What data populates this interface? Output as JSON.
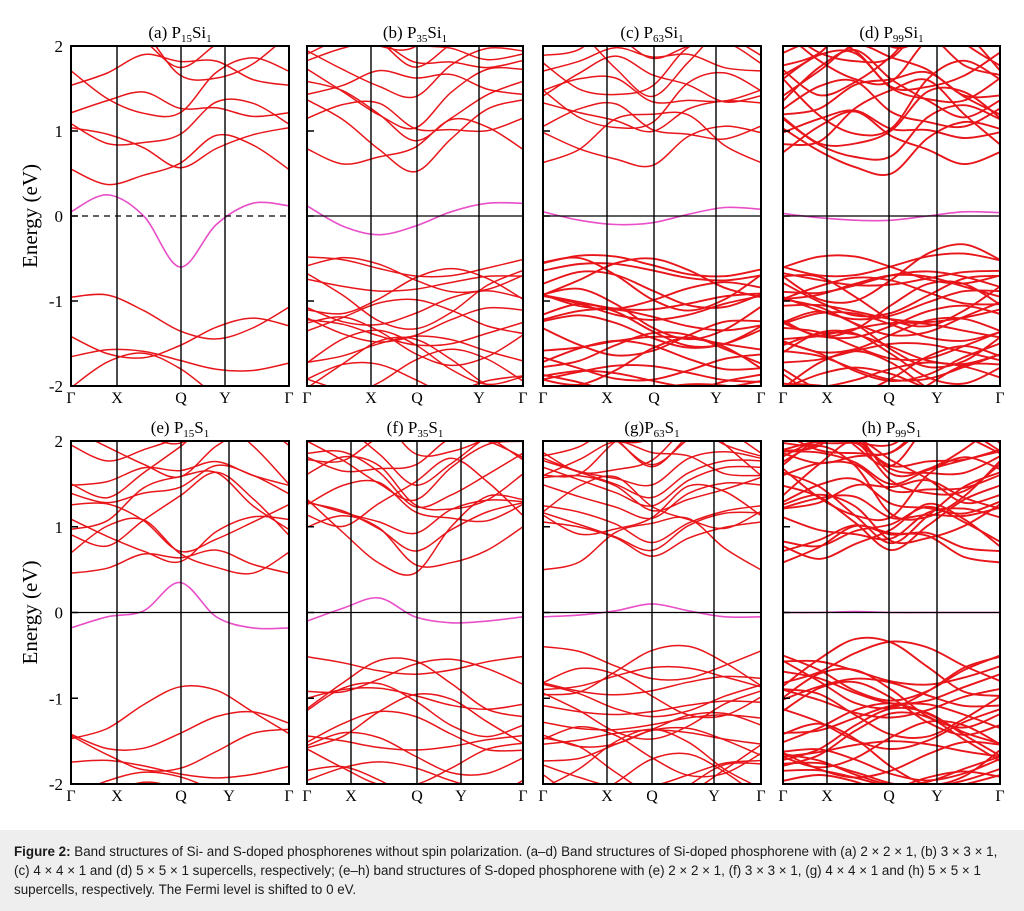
{
  "caption": {
    "label": "Figure 2:",
    "text": "Band structures of Si- and S-doped phosphorenes without spin polarization. (a–d) Band structures of Si-doped phosphorene with (a) 2 × 2 × 1, (b) 3 × 3 × 1, (c) 4 × 4 × 1 and (d) 5 × 5 × 1 supercells, respectively; (e–h) band structures of S-doped phosphorene with (e) 2 × 2 × 1, (f) 3 × 3 × 1, (g) 4 × 4 × 1 and (h) 5 × 5 × 1 supercells, respectively. The Fermi level is shifted to 0 eV."
  },
  "colors": {
    "band": "#e8161a",
    "impurity_band": "#e84fc8",
    "axis": "#000000"
  },
  "chart_data": [
    {
      "type": "line",
      "panel": "a",
      "title": "(a) P15Si1",
      "title_main": "(a) P",
      "sub1": "15",
      "mid": "Si",
      "sub2": "1",
      "ylabel": "Energy (eV)",
      "ylim": [
        -2,
        2
      ],
      "yticks": [
        "2",
        "1",
        "0",
        "-1",
        "-2"
      ],
      "xticks": [
        "Γ",
        "X",
        "Q",
        "Y",
        "Γ"
      ],
      "fermi_line": "dashed",
      "impurity_band": [
        0.05,
        0.25,
        0.0,
        -0.6,
        -0.1,
        0.15,
        0.12
      ],
      "n_conduction": 8,
      "n_valence": 6
    },
    {
      "type": "line",
      "panel": "b",
      "title": "(b) P35Si1",
      "title_main": "(b) P",
      "sub1": "35",
      "mid": "Si",
      "sub2": "1",
      "ylim": [
        -2,
        2
      ],
      "xticks": [
        "Γ",
        "X",
        "Q",
        "Y",
        "Γ"
      ],
      "fermi_line": "solid",
      "impurity_band": [
        0.12,
        -0.12,
        -0.22,
        -0.12,
        0.05,
        0.15,
        0.15
      ],
      "n_conduction": 12,
      "n_valence": 16
    },
    {
      "type": "line",
      "panel": "c",
      "title": "(c) P63Si1",
      "title_main": "(c) P",
      "sub1": "63",
      "mid": "Si",
      "sub2": "1",
      "ylim": [
        -2,
        2
      ],
      "xticks": [
        "Γ",
        "X",
        "Q",
        "Y",
        "Γ"
      ],
      "fermi_line": "solid",
      "impurity_band": [
        0.05,
        -0.05,
        -0.1,
        -0.08,
        0.02,
        0.1,
        0.08
      ],
      "n_conduction": 14,
      "n_valence": 22
    },
    {
      "type": "line",
      "panel": "d",
      "title": "(d) P99Si1",
      "title_main": "(d) P",
      "sub1": "99",
      "mid": "Si",
      "sub2": "1",
      "ylim": [
        -2,
        2
      ],
      "xticks": [
        "Γ",
        "X",
        "Q",
        "Y",
        "Γ"
      ],
      "fermi_line": "solid",
      "impurity_band": [
        0.03,
        -0.02,
        -0.05,
        -0.05,
        0.0,
        0.05,
        0.04
      ],
      "n_conduction": 22,
      "n_valence": 30
    },
    {
      "type": "line",
      "panel": "e",
      "title": "(e) P15S1",
      "title_main": "(e) P",
      "sub1": "15",
      "mid": "S",
      "sub2": "1",
      "ylabel": "Energy (eV)",
      "ylim": [
        -2,
        2
      ],
      "yticks": [
        "2",
        "1",
        "0",
        "-1",
        "-2"
      ],
      "xticks": [
        "Γ",
        "X",
        "Q",
        "Y",
        "Γ"
      ],
      "fermi_line": "solid",
      "impurity_band": [
        -0.18,
        -0.05,
        0.02,
        0.35,
        -0.05,
        -0.18,
        -0.18
      ],
      "n_conduction": 12,
      "n_valence": 7
    },
    {
      "type": "line",
      "panel": "f",
      "title": "(f) P35S1",
      "title_main": "(f) P",
      "sub1": "35",
      "mid": "S",
      "sub2": "1",
      "ylim": [
        -2,
        2
      ],
      "xticks": [
        "Γ",
        "X",
        "Q",
        "Y",
        "Γ"
      ],
      "fermi_line": "solid",
      "impurity_band": [
        -0.1,
        0.05,
        0.17,
        -0.05,
        -0.12,
        -0.1,
        -0.05
      ],
      "n_conduction": 16,
      "n_valence": 12
    },
    {
      "type": "line",
      "panel": "g",
      "title": "(g)P63S1",
      "title_main": "(g)P",
      "sub1": "63",
      "mid": "S",
      "sub2": "1",
      "ylim": [
        -2,
        2
      ],
      "xticks": [
        "Γ",
        "X",
        "Q",
        "Y",
        "Γ"
      ],
      "fermi_line": "solid",
      "impurity_band": [
        -0.05,
        -0.03,
        0.02,
        0.1,
        0.02,
        -0.05,
        -0.05
      ],
      "n_conduction": 20,
      "n_valence": 18
    },
    {
      "type": "line",
      "panel": "h",
      "title": "(h) P99S1",
      "title_main": "(h) P",
      "sub1": "99",
      "mid": "S",
      "sub2": "1",
      "ylim": [
        -2,
        2
      ],
      "xticks": [
        "Γ",
        "X",
        "Q",
        "Y",
        "Γ"
      ],
      "fermi_line": "solid",
      "impurity_band": [
        0.0,
        0.0,
        0.01,
        0.0,
        0.0,
        0.0,
        0.0
      ],
      "n_conduction": 30,
      "n_valence": 26
    }
  ]
}
